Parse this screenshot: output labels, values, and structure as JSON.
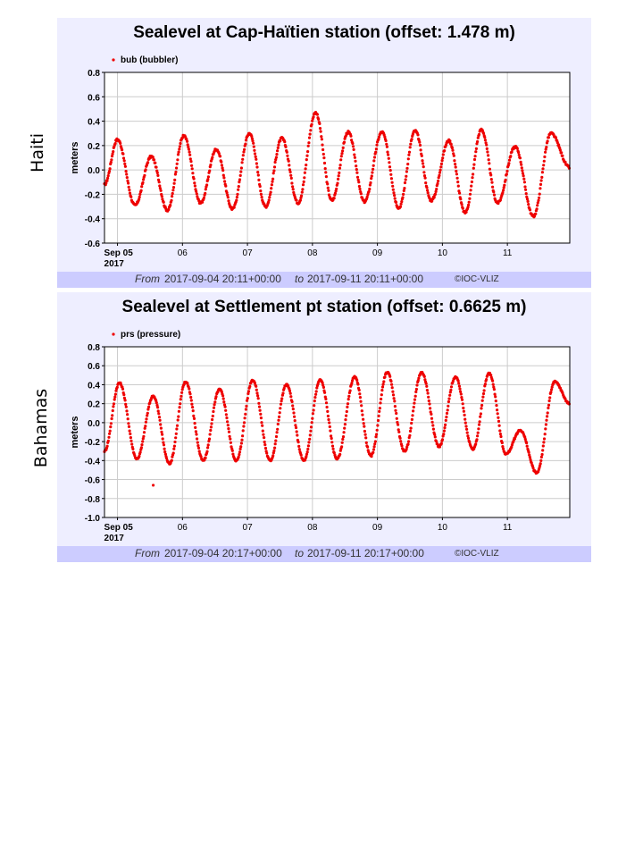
{
  "charts": [
    {
      "side_label": "Haiti",
      "footer": {
        "from_word": "From",
        "from": "2017-09-04 20:11+00:00",
        "to_word": "to",
        "to": "2017-09-11 20:11+00:00",
        "credit": "©IOC-VLIZ"
      },
      "chart_data": {
        "type": "scatter",
        "title": "Sealevel at Cap-Haïtien station (offset: 1.478 m)",
        "ylabel": "meters",
        "xlabel": "",
        "ylim": [
          -0.6,
          0.8
        ],
        "yticks": [
          -0.6,
          -0.4,
          -0.2,
          0.0,
          0.2,
          0.4,
          0.6,
          0.8
        ],
        "ytick_labels": [
          "-0.6",
          "-0.4",
          "-0.2",
          "0.0",
          "0.2",
          "0.4",
          "0.6",
          "0.8"
        ],
        "xlim": [
          -0.2,
          6.96
        ],
        "xticks": [
          0,
          1,
          2,
          3,
          4,
          5,
          6,
          7
        ],
        "xtick_labels": [
          "Sep 05",
          "06",
          "07",
          "08",
          "09",
          "10",
          "11",
          ""
        ],
        "x_sublabel": "2017",
        "grid": true,
        "legend_position": "top-left",
        "series": [
          {
            "name": "bub (bubbler)",
            "color": "#ee0000",
            "extrema": [
              [
                -0.2,
                -0.12
              ],
              [
                0.0,
                0.25
              ],
              [
                0.27,
                -0.29
              ],
              [
                0.52,
                0.11
              ],
              [
                0.77,
                -0.33
              ],
              [
                1.02,
                0.28
              ],
              [
                1.28,
                -0.27
              ],
              [
                1.52,
                0.17
              ],
              [
                1.77,
                -0.32
              ],
              [
                2.03,
                0.3
              ],
              [
                2.28,
                -0.3
              ],
              [
                2.53,
                0.26
              ],
              [
                2.78,
                -0.27
              ],
              [
                3.05,
                0.47
              ],
              [
                3.3,
                -0.25
              ],
              [
                3.55,
                0.31
              ],
              [
                3.8,
                -0.26
              ],
              [
                4.07,
                0.31
              ],
              [
                4.33,
                -0.31
              ],
              [
                4.58,
                0.32
              ],
              [
                4.83,
                -0.25
              ],
              [
                5.1,
                0.24
              ],
              [
                5.35,
                -0.35
              ],
              [
                5.6,
                0.33
              ],
              [
                5.85,
                -0.27
              ],
              [
                6.12,
                0.19
              ],
              [
                6.4,
                -0.38
              ],
              [
                6.67,
                0.3
              ],
              [
                6.96,
                0.02
              ]
            ]
          }
        ]
      }
    },
    {
      "side_label": "Bahamas",
      "footer": {
        "from_word": "From",
        "from": "2017-09-04 20:17+00:00",
        "to_word": "to",
        "to": "2017-09-11 20:17+00:00",
        "credit": "©IOC-VLIZ"
      },
      "chart_data": {
        "type": "scatter",
        "title": "Sealevel at Settlement pt station (offset: 0.6625 m)",
        "ylabel": "meters",
        "xlabel": "",
        "ylim": [
          -1.0,
          0.8
        ],
        "yticks": [
          -1.0,
          -0.8,
          -0.6,
          -0.4,
          -0.2,
          0.0,
          0.2,
          0.4,
          0.6,
          0.8
        ],
        "ytick_labels": [
          "-1.0",
          "-0.8",
          "-0.6",
          "-0.4",
          "-0.2",
          "0.0",
          "0.2",
          "0.4",
          "0.6",
          "0.8"
        ],
        "xlim": [
          -0.2,
          6.96
        ],
        "xticks": [
          0,
          1,
          2,
          3,
          4,
          5,
          6,
          7
        ],
        "xtick_labels": [
          "Sep 05",
          "06",
          "07",
          "08",
          "09",
          "10",
          "11",
          ""
        ],
        "x_sublabel": "2017",
        "grid": true,
        "legend_position": "top-left",
        "series": [
          {
            "name": "prs (pressure)",
            "color": "#ee0000",
            "extrema": [
              [
                -0.2,
                -0.3
              ],
              [
                0.03,
                0.42
              ],
              [
                0.3,
                -0.38
              ],
              [
                0.55,
                0.28
              ],
              [
                0.8,
                -0.43
              ],
              [
                1.05,
                0.43
              ],
              [
                1.32,
                -0.4
              ],
              [
                1.57,
                0.35
              ],
              [
                1.83,
                -0.4
              ],
              [
                2.08,
                0.45
              ],
              [
                2.35,
                -0.4
              ],
              [
                2.6,
                0.4
              ],
              [
                2.87,
                -0.4
              ],
              [
                3.12,
                0.45
              ],
              [
                3.38,
                -0.38
              ],
              [
                3.65,
                0.48
              ],
              [
                3.9,
                -0.35
              ],
              [
                4.15,
                0.53
              ],
              [
                4.42,
                -0.3
              ],
              [
                4.68,
                0.53
              ],
              [
                4.95,
                -0.25
              ],
              [
                5.2,
                0.48
              ],
              [
                5.47,
                -0.28
              ],
              [
                5.72,
                0.52
              ],
              [
                5.98,
                -0.33
              ],
              [
                6.2,
                -0.08
              ],
              [
                6.45,
                -0.53
              ],
              [
                6.73,
                0.43
              ],
              [
                6.96,
                0.2
              ]
            ],
            "outliers": [
              [
                0.55,
                -0.66
              ]
            ]
          }
        ]
      }
    }
  ]
}
